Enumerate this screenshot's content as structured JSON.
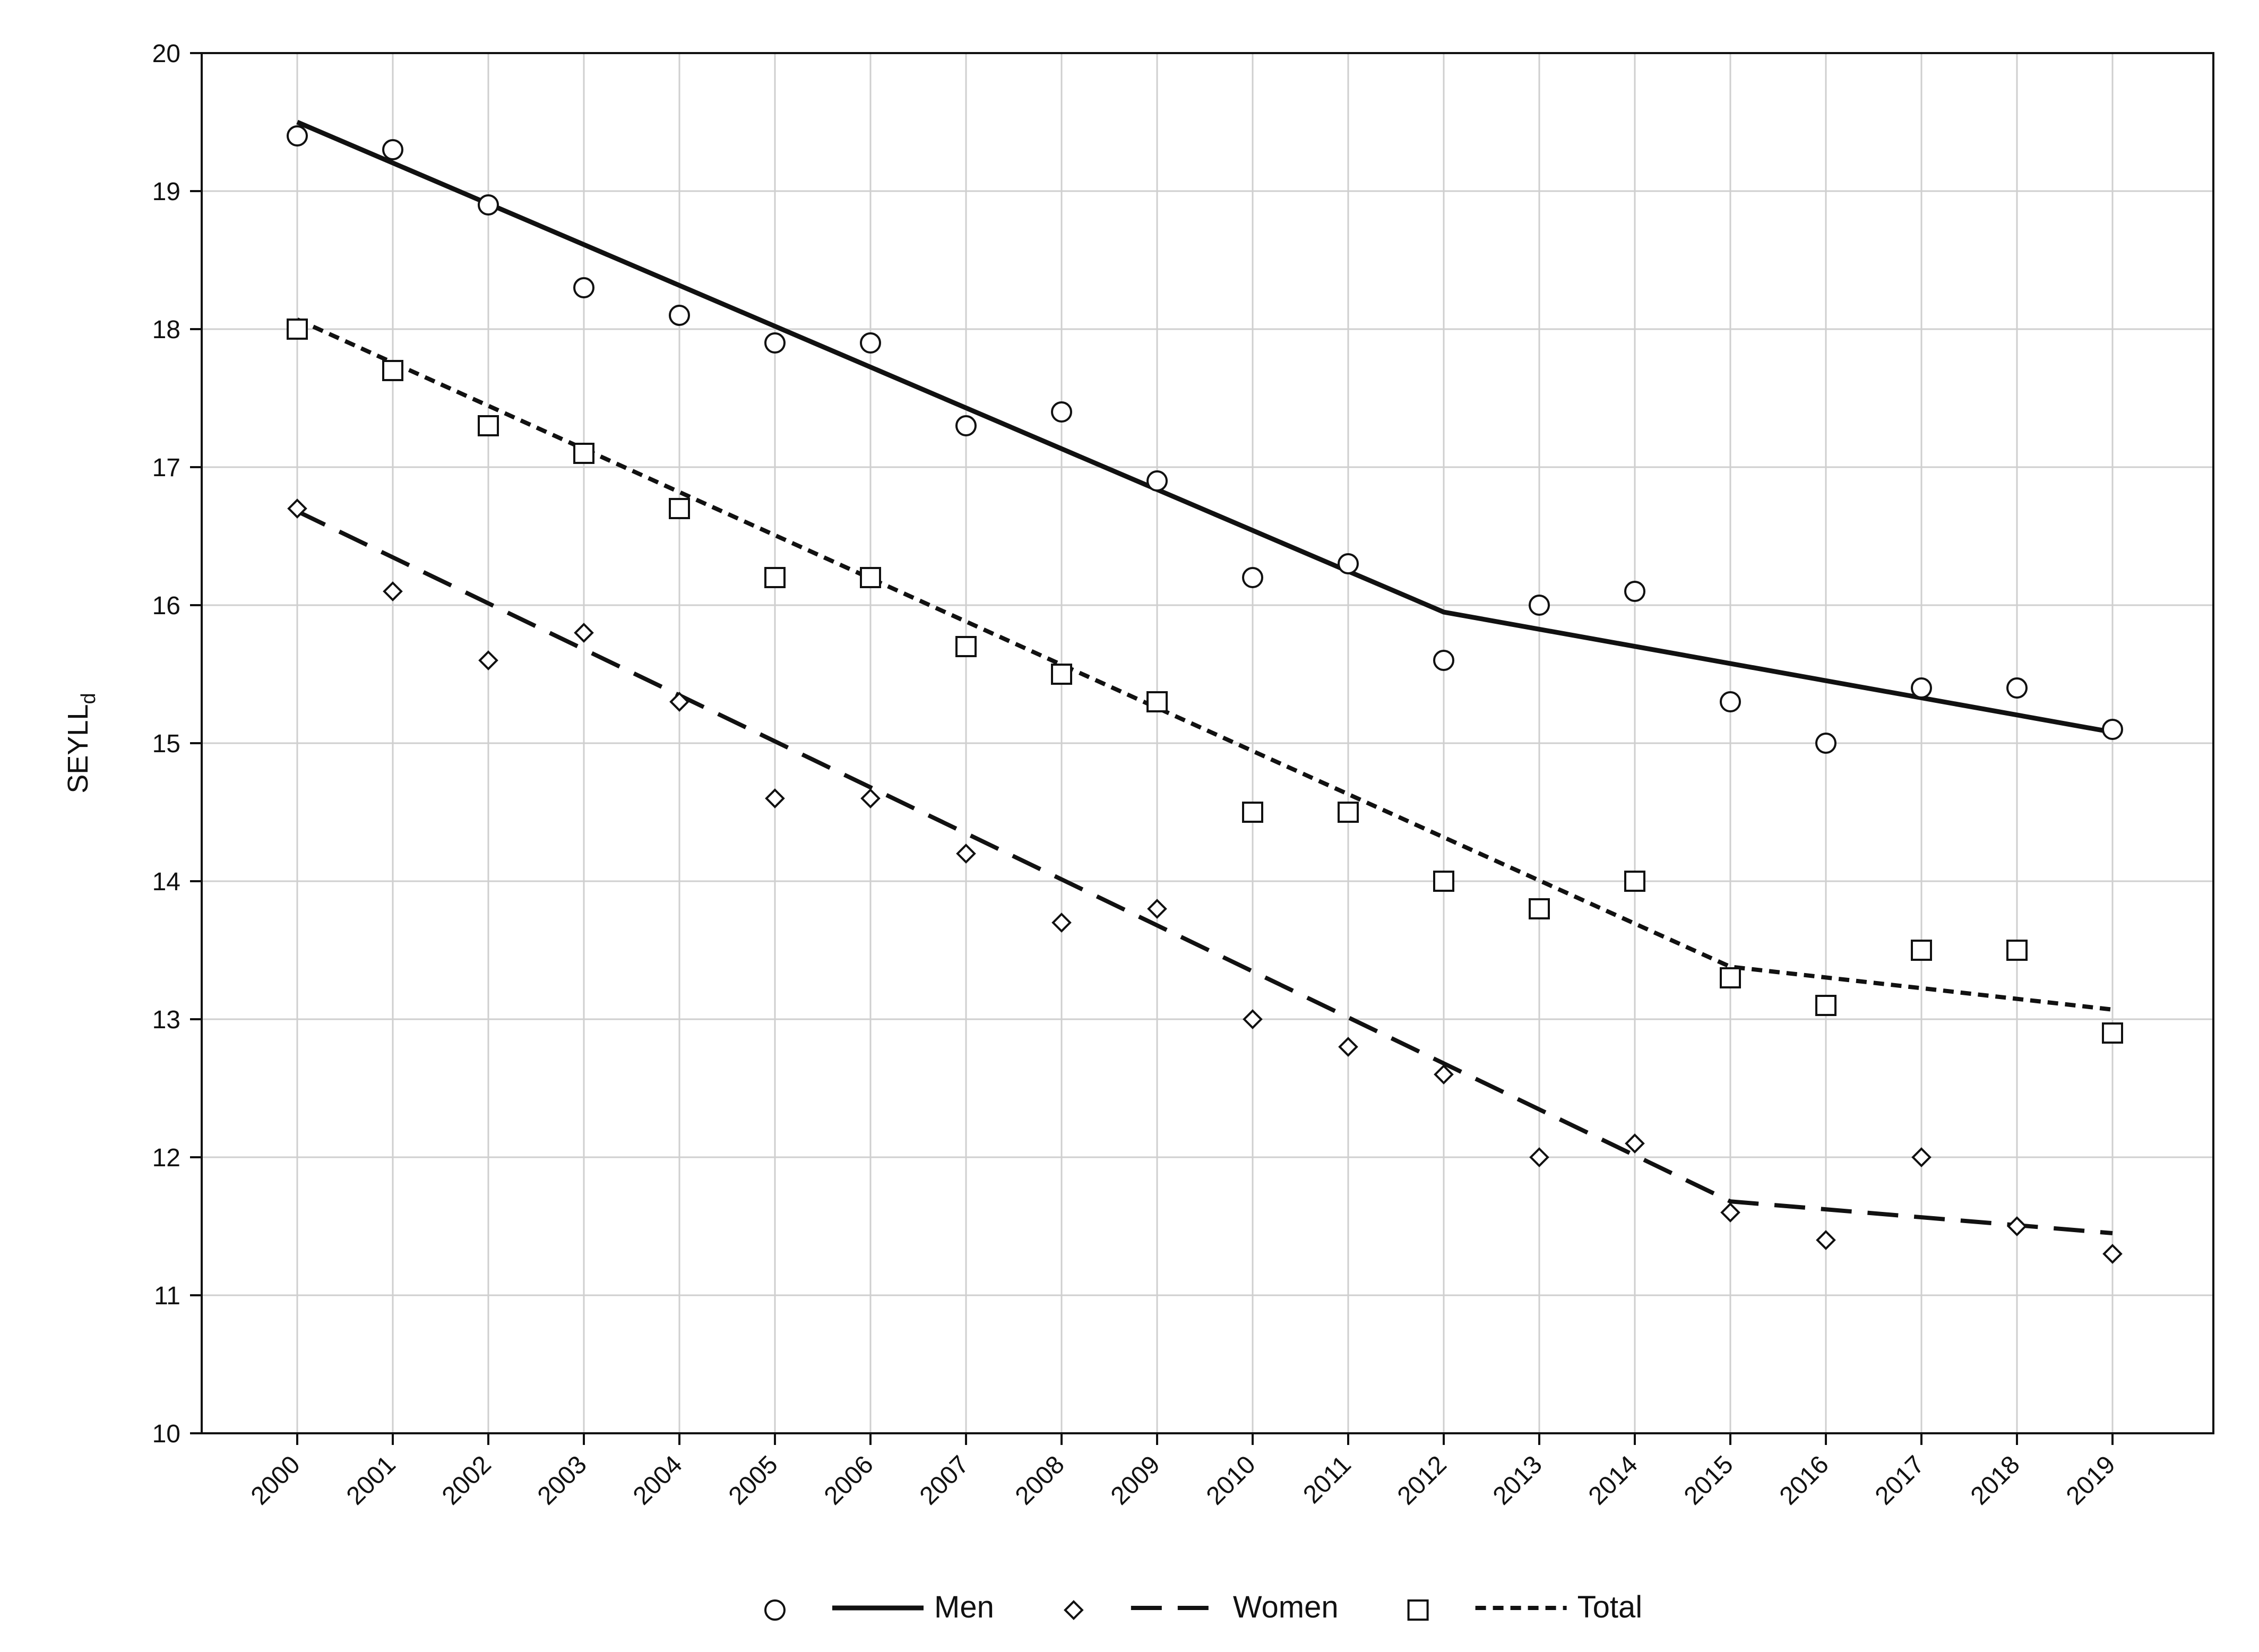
{
  "chart_data": {
    "type": "line",
    "ylabel": "SEYLL",
    "ylabel_subscript": "d",
    "xlabel": "",
    "ylim": [
      10,
      20
    ],
    "yticks": [
      "10",
      "11",
      "12",
      "13",
      "14",
      "15",
      "16",
      "17",
      "18",
      "19",
      "20"
    ],
    "categories": [
      "2000",
      "2001",
      "2002",
      "2003",
      "2004",
      "2005",
      "2006",
      "2007",
      "2008",
      "2009",
      "2010",
      "2011",
      "2012",
      "2013",
      "2014",
      "2015",
      "2016",
      "2017",
      "2018",
      "2019"
    ],
    "grid": true,
    "legend_position": "bottom-center",
    "series": [
      {
        "name": "Men",
        "marker": "circle",
        "line_style": "solid",
        "values": [
          19.4,
          19.3,
          18.9,
          18.3,
          18.1,
          17.9,
          17.9,
          17.3,
          17.4,
          16.9,
          16.2,
          16.3,
          15.6,
          16.0,
          16.1,
          15.3,
          15.0,
          15.4,
          15.4,
          15.1
        ],
        "trend": [
          [
            2000,
            19.5
          ],
          [
            2012,
            15.95
          ],
          [
            2019,
            15.08
          ]
        ]
      },
      {
        "name": "Women",
        "marker": "diamond",
        "line_style": "dashed",
        "values": [
          16.7,
          16.1,
          15.6,
          15.8,
          15.3,
          14.6,
          14.6,
          14.2,
          13.7,
          13.8,
          13.0,
          12.8,
          12.6,
          12.0,
          12.1,
          11.6,
          11.4,
          12.0,
          11.5,
          11.3
        ],
        "trend": [
          [
            2000,
            16.68
          ],
          [
            2015,
            11.68
          ],
          [
            2019,
            11.45
          ]
        ]
      },
      {
        "name": "Total",
        "marker": "square",
        "line_style": "dotted",
        "values": [
          18.0,
          17.7,
          17.3,
          17.1,
          16.7,
          16.2,
          16.2,
          15.7,
          15.5,
          15.3,
          14.5,
          14.5,
          14.0,
          13.8,
          14.0,
          13.3,
          13.1,
          13.5,
          13.5,
          12.9
        ],
        "trend": [
          [
            2000,
            18.07
          ],
          [
            2015,
            13.38
          ],
          [
            2019,
            13.07
          ]
        ]
      }
    ]
  }
}
